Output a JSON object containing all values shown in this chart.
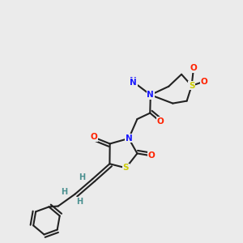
{
  "bg": "#ebebeb",
  "bc": "#222222",
  "lw": 1.5,
  "doff": 0.013,
  "fs": 7.5,
  "colors": {
    "N": "#1a1aff",
    "O": "#ff2200",
    "S_y": "#cccc00",
    "S_thz": "#cccc00",
    "H": "#4a9090",
    "C": "#222222",
    "Me": "#222222"
  },
  "figsize": [
    3.0,
    3.0
  ],
  "dpi": 100
}
